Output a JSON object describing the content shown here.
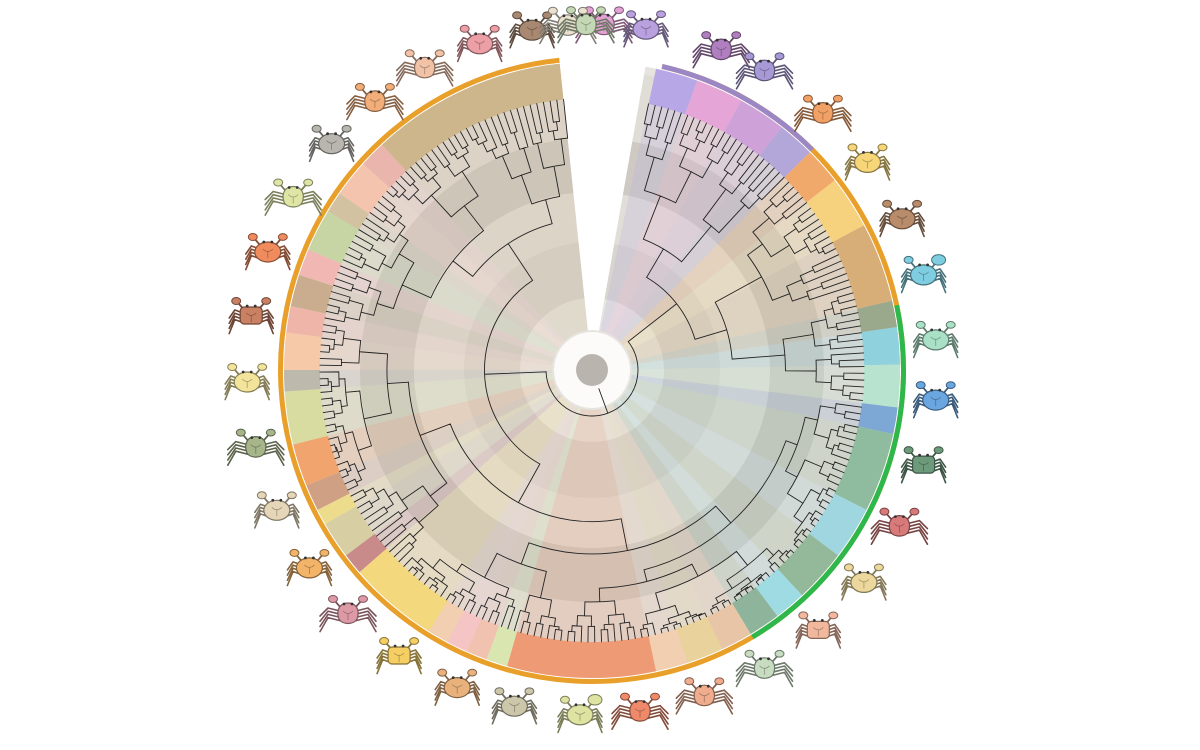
{
  "figure": {
    "type": "circular-phylogenetic-tree",
    "taxon_count": 240,
    "gap_sector_degrees": [
      -6,
      10
    ],
    "rank_band_colors": [
      "#ffffff",
      "#dedad4",
      "#cac5bf",
      "#e4e0db",
      "#d6d2cc",
      "#e9e6e2"
    ],
    "outer_rings": [
      {
        "name": "orange-group",
        "color": "#e8a02a",
        "start_deg": 13,
        "end_deg": 354
      },
      {
        "name": "green-group",
        "color": "#2eb84c",
        "start_deg": 78,
        "end_deg": 149
      },
      {
        "name": "purple-group",
        "color": "#9b87c4",
        "start_deg": 13,
        "end_deg": 45
      }
    ],
    "clade_sectors": [
      {
        "start_deg": 12,
        "end_deg": 20,
        "color": "#b8a7e6"
      },
      {
        "start_deg": 20,
        "end_deg": 29,
        "color": "#e5a5d6"
      },
      {
        "start_deg": 29,
        "end_deg": 38,
        "color": "#cfa1d9"
      },
      {
        "start_deg": 38,
        "end_deg": 45,
        "color": "#b3a6d8"
      },
      {
        "start_deg": 45,
        "end_deg": 52,
        "color": "#f0a96a"
      },
      {
        "start_deg": 52,
        "end_deg": 62,
        "color": "#f6d27e"
      },
      {
        "start_deg": 62,
        "end_deg": 77,
        "color": "#d8ae78"
      },
      {
        "start_deg": 77,
        "end_deg": 82,
        "color": "#9aa88c"
      },
      {
        "start_deg": 82,
        "end_deg": 89,
        "color": "#8fd1dc"
      },
      {
        "start_deg": 89,
        "end_deg": 97,
        "color": "#b7e3cf"
      },
      {
        "start_deg": 97,
        "end_deg": 102,
        "color": "#7da7d4"
      },
      {
        "start_deg": 102,
        "end_deg": 117,
        "color": "#8fbc9e"
      },
      {
        "start_deg": 117,
        "end_deg": 127,
        "color": "#9fd6e0"
      },
      {
        "start_deg": 127,
        "end_deg": 137,
        "color": "#93b99a"
      },
      {
        "start_deg": 137,
        "end_deg": 143,
        "color": "#9edbe3"
      },
      {
        "start_deg": 143,
        "end_deg": 149,
        "color": "#8eb59b"
      },
      {
        "start_deg": 149,
        "end_deg": 155,
        "color": "#e8c5a6"
      },
      {
        "start_deg": 155,
        "end_deg": 162,
        "color": "#ead29c"
      },
      {
        "start_deg": 162,
        "end_deg": 168,
        "color": "#f3cfb2"
      },
      {
        "start_deg": 168,
        "end_deg": 196,
        "color": "#ee9a74"
      },
      {
        "start_deg": 196,
        "end_deg": 200,
        "color": "#d9e6b0"
      },
      {
        "start_deg": 200,
        "end_deg": 204,
        "color": "#f2c2b0"
      },
      {
        "start_deg": 204,
        "end_deg": 208,
        "color": "#f5c4c4"
      },
      {
        "start_deg": 208,
        "end_deg": 212,
        "color": "#f1cfb0"
      },
      {
        "start_deg": 212,
        "end_deg": 229,
        "color": "#f4d87e"
      },
      {
        "start_deg": 229,
        "end_deg": 233,
        "color": "#c98a8a"
      },
      {
        "start_deg": 233,
        "end_deg": 240,
        "color": "#d7cfa3"
      },
      {
        "start_deg": 240,
        "end_deg": 243,
        "color": "#eedc8d"
      },
      {
        "start_deg": 243,
        "end_deg": 248,
        "color": "#cfa083"
      },
      {
        "start_deg": 248,
        "end_deg": 256,
        "color": "#f1a46e"
      },
      {
        "start_deg": 256,
        "end_deg": 266,
        "color": "#d8dca0"
      },
      {
        "start_deg": 266,
        "end_deg": 270,
        "color": "#bdb9ad"
      },
      {
        "start_deg": 270,
        "end_deg": 277,
        "color": "#f6c9a8"
      },
      {
        "start_deg": 277,
        "end_deg": 282,
        "color": "#efb5a8"
      },
      {
        "start_deg": 282,
        "end_deg": 288,
        "color": "#c9ad8e"
      },
      {
        "start_deg": 288,
        "end_deg": 293,
        "color": "#f0b7b3"
      },
      {
        "start_deg": 293,
        "end_deg": 301,
        "color": "#c7d4a4"
      },
      {
        "start_deg": 301,
        "end_deg": 305,
        "color": "#d3c2a2"
      },
      {
        "start_deg": 305,
        "end_deg": 312,
        "color": "#f4c4ae"
      },
      {
        "start_deg": 312,
        "end_deg": 317,
        "color": "#eab5ad"
      },
      {
        "start_deg": 317,
        "end_deg": 354,
        "color": "#cdb58c"
      }
    ],
    "crab_icons": [
      {
        "angle_deg": 2,
        "body": "#e4a2d4",
        "style": "spider"
      },
      {
        "angle_deg": 9,
        "body": "#b9a0de",
        "style": "round"
      },
      {
        "angle_deg": 22,
        "body": "#b07fbf",
        "style": "spider"
      },
      {
        "angle_deg": 30,
        "body": "#a799d6",
        "style": "spider"
      },
      {
        "angle_deg": 42,
        "body": "#f2a166",
        "style": "spider"
      },
      {
        "angle_deg": 53,
        "body": "#f6d678",
        "style": "round"
      },
      {
        "angle_deg": 64,
        "body": "#b88b6b",
        "style": "round"
      },
      {
        "angle_deg": 74,
        "body": "#7fcde0",
        "style": "fiddler"
      },
      {
        "angle_deg": 85,
        "body": "#a9e0c6",
        "style": "round"
      },
      {
        "angle_deg": 95,
        "body": "#6aa6df",
        "style": "round"
      },
      {
        "angle_deg": 106,
        "body": "#6e9a7c",
        "style": "square"
      },
      {
        "angle_deg": 117,
        "body": "#d97a7a",
        "style": "spider"
      },
      {
        "angle_deg": 128,
        "body": "#ecd89c",
        "style": "round"
      },
      {
        "angle_deg": 139,
        "body": "#f2b89e",
        "style": "square"
      },
      {
        "angle_deg": 150,
        "body": "#c7dcc0",
        "style": "spider"
      },
      {
        "angle_deg": 161,
        "body": "#efad8d",
        "style": "spider"
      },
      {
        "angle_deg": 172,
        "body": "#ee8a6a",
        "style": "spider"
      },
      {
        "angle_deg": 182,
        "body": "#dfe3a2",
        "style": "fiddler"
      },
      {
        "angle_deg": 193,
        "body": "#ccc7aa",
        "style": "round"
      },
      {
        "angle_deg": 203,
        "body": "#e9b27d",
        "style": "round"
      },
      {
        "angle_deg": 214,
        "body": "#f5cf63",
        "style": "square"
      },
      {
        "angle_deg": 225,
        "body": "#dd9aa6",
        "style": "spider"
      },
      {
        "angle_deg": 235,
        "body": "#f2b469",
        "style": "round"
      },
      {
        "angle_deg": 246,
        "body": "#e6d6b8",
        "style": "round"
      },
      {
        "angle_deg": 257,
        "body": "#a7b58a",
        "style": "spider"
      },
      {
        "angle_deg": 268,
        "body": "#f2e49b",
        "style": "round"
      },
      {
        "angle_deg": 279,
        "body": "#c98063",
        "style": "square"
      },
      {
        "angle_deg": 290,
        "body": "#f08b5e",
        "style": "round"
      },
      {
        "angle_deg": 300,
        "body": "#dfe6a5",
        "style": "spider"
      },
      {
        "angle_deg": 311,
        "body": "#b9b6b0",
        "style": "round"
      },
      {
        "angle_deg": 321,
        "body": "#f2ad78",
        "style": "spider"
      },
      {
        "angle_deg": 331,
        "body": "#f2c2a6",
        "style": "spider"
      },
      {
        "angle_deg": 341,
        "body": "#ec9fa5",
        "style": "round"
      },
      {
        "angle_deg": 350,
        "body": "#a88870",
        "style": "round"
      },
      {
        "angle_deg": 356,
        "body": "#ebe1cf",
        "style": "spider"
      },
      {
        "angle_deg": 359,
        "body": "#c5d8b5",
        "style": "spider"
      }
    ]
  }
}
